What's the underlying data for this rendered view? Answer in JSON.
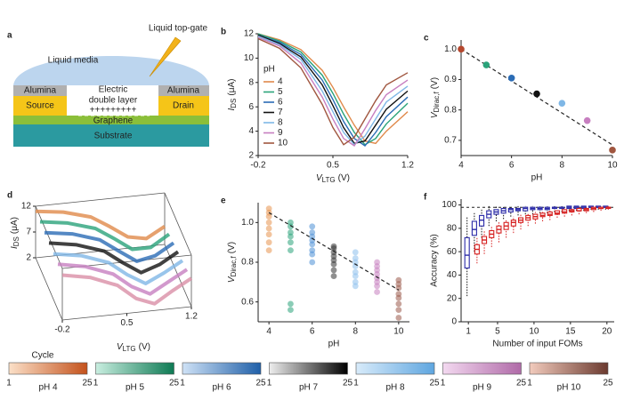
{
  "diagram": {
    "panel": "a",
    "top_gate": "Liquid top-gate",
    "media": "Liquid media",
    "alumina_left": "Alumina",
    "alumina_right": "Alumina",
    "edl": [
      "Electric",
      "double layer"
    ],
    "charges": "+++++++++",
    "source": "Source",
    "drain": "Drain",
    "graphene": "Graphene",
    "substrate": "Substrate"
  },
  "chart_data": [
    {
      "type": "line",
      "panel": "b",
      "x": [
        -0.2,
        0,
        0.2,
        0.4,
        0.5,
        0.6,
        0.7,
        0.8,
        0.9,
        1.0,
        1.2
      ],
      "legend_title": "pH",
      "series": [
        {
          "name": "4",
          "color": "#e0894a",
          "values": [
            12.0,
            11.5,
            10.7,
            9.0,
            7.6,
            6.0,
            4.5,
            3.2,
            3.0,
            4.0,
            5.6
          ]
        },
        {
          "name": "5",
          "color": "#2aa37a",
          "values": [
            12.0,
            11.4,
            10.5,
            8.6,
            7.1,
            5.4,
            3.9,
            2.9,
            3.4,
            4.6,
            6.3
          ]
        },
        {
          "name": "6",
          "color": "#2b6cb5",
          "values": [
            11.9,
            11.3,
            10.3,
            8.2,
            6.6,
            4.8,
            3.4,
            2.8,
            3.9,
            5.2,
            6.8
          ]
        },
        {
          "name": "7",
          "color": "#111111",
          "values": [
            11.9,
            11.2,
            10.1,
            7.8,
            6.1,
            4.3,
            3.0,
            3.2,
            4.5,
            5.8,
            7.3
          ]
        },
        {
          "name": "8",
          "color": "#7fb7e6",
          "values": [
            11.8,
            11.1,
            9.9,
            7.3,
            5.6,
            3.9,
            2.9,
            3.6,
            5.0,
            6.4,
            7.7
          ]
        },
        {
          "name": "9",
          "color": "#c77fc0",
          "values": [
            11.7,
            11.0,
            9.6,
            6.8,
            5.0,
            3.4,
            2.8,
            4.2,
            5.7,
            7.0,
            8.2
          ]
        },
        {
          "name": "10",
          "color": "#a0563f",
          "values": [
            11.6,
            10.8,
            9.2,
            6.2,
            4.3,
            2.9,
            3.5,
            5.0,
            6.5,
            7.8,
            8.8
          ]
        }
      ],
      "xlim": [
        -0.2,
        1.2
      ],
      "ylim": [
        2,
        12
      ],
      "xticks": [
        -0.2,
        0.5,
        1.2
      ],
      "yticks": [
        2,
        4,
        6,
        8,
        10,
        12
      ],
      "x_label": {
        "main": "V",
        "sub": "LTG",
        "unit": "(V)"
      },
      "y_label": {
        "main": "I",
        "sub": "DS",
        "unit": "(μA)"
      }
    },
    {
      "type": "scatter",
      "panel": "c",
      "x": [
        4,
        5,
        6,
        7,
        8,
        9,
        10
      ],
      "values": [
        1.0,
        0.948,
        0.905,
        0.853,
        0.822,
        0.765,
        0.668
      ],
      "colors": [
        "#b5472e",
        "#2aa37a",
        "#2b6cb5",
        "#111111",
        "#7fb7e6",
        "#c77fc0",
        "#a0563f"
      ],
      "fit": {
        "x": [
          4,
          10
        ],
        "values": [
          1.0,
          0.685
        ]
      },
      "xlim": [
        4,
        10
      ],
      "ylim": [
        0.65,
        1.03
      ],
      "xticks": [
        4,
        6,
        8,
        10
      ],
      "yticks": [
        0.7,
        0.8,
        0.9,
        {
          "value": 1,
          "label": "1.0"
        }
      ],
      "x_label": "pH",
      "y_label": {
        "main": "V",
        "sub": "Dirac,f",
        "unit": "(V)"
      }
    },
    {
      "type": "line3d",
      "panel": "d",
      "x": [
        -0.2,
        0.1,
        0.4,
        0.6,
        0.8,
        1.0,
        1.2
      ],
      "series": [
        {
          "color": "#e0894a",
          "values": [
            11,
            10.3,
            8.8,
            6.6,
            4.2,
            3.5,
            5.5
          ]
        },
        {
          "color": "#2aa37a",
          "values": [
            11,
            10.2,
            8.6,
            6.3,
            3.8,
            3.8,
            6
          ]
        },
        {
          "color": "#2b6cb5",
          "values": [
            10.9,
            10.1,
            8.4,
            5.9,
            3.5,
            4.2,
            6.3
          ]
        },
        {
          "color": "#111111",
          "values": [
            10.9,
            10,
            8.2,
            5.6,
            3.3,
            4.5,
            6.6
          ]
        },
        {
          "color": "#7fb7e6",
          "values": [
            10.8,
            9.9,
            8,
            5.3,
            3.2,
            4.9,
            6.9
          ]
        },
        {
          "color": "#c77fc0",
          "values": [
            10.8,
            9.8,
            7.8,
            5,
            3.2,
            5.2,
            7.2
          ]
        },
        {
          "color": "#d98fa6",
          "values": [
            10.7,
            9.7,
            7.6,
            4.7,
            3.3,
            5.5,
            7.5
          ]
        }
      ],
      "xlim": [
        -0.2,
        1.2
      ],
      "zlim": [
        2,
        12
      ],
      "xticks": [
        -0.2,
        0.5,
        1.2
      ],
      "zticks": [
        2,
        7,
        12
      ],
      "x_label": {
        "main": "V",
        "sub": "LTG",
        "unit": "(V)"
      },
      "y_label": {
        "main": "I",
        "sub": "DS",
        "unit": "(μA)"
      }
    },
    {
      "type": "strip",
      "panel": "e",
      "series": [
        {
          "x": 4,
          "color": "#e8944f",
          "values": [
            1.07,
            1.05,
            1.03,
            1.0,
            0.97,
            0.94,
            0.9,
            0.86
          ]
        },
        {
          "x": 5,
          "color": "#2aa37a",
          "values": [
            1.0,
            0.98,
            0.95,
            0.93,
            0.9,
            0.86,
            0.59,
            0.56
          ]
        },
        {
          "x": 6,
          "color": "#4c8fd6",
          "values": [
            0.98,
            0.95,
            0.93,
            0.91,
            0.89,
            0.86,
            0.84,
            0.8
          ]
        },
        {
          "x": 7,
          "color": "#333333",
          "values": [
            0.88,
            0.87,
            0.85,
            0.83,
            0.81,
            0.79,
            0.76,
            0.73
          ]
        },
        {
          "x": 8,
          "color": "#8cc0ec",
          "values": [
            0.85,
            0.82,
            0.8,
            0.78,
            0.75,
            0.73,
            0.7,
            0.68
          ]
        },
        {
          "x": 9,
          "color": "#c77fc0",
          "values": [
            0.8,
            0.78,
            0.76,
            0.74,
            0.72,
            0.7,
            0.68,
            0.65
          ]
        },
        {
          "x": 10,
          "color": "#9a5a4a",
          "values": [
            0.71,
            0.69,
            0.67,
            0.64,
            0.62,
            0.59,
            0.56,
            0.52
          ]
        }
      ],
      "fit": {
        "x": [
          4,
          10
        ],
        "values": [
          1.05,
          0.66
        ]
      },
      "xlim": [
        3.5,
        10.5
      ],
      "ylim": [
        0.5,
        1.1
      ],
      "xticks": [
        4,
        6,
        8,
        10
      ],
      "yticks": [
        0.6,
        0.8,
        {
          "value": 1,
          "label": "1.0"
        }
      ],
      "x_label": "pH",
      "y_label": {
        "main": "V",
        "sub": "Dirac,f",
        "unit": "(V)"
      }
    },
    {
      "type": "box",
      "panel": "f",
      "series": [
        {
          "color": "#2a2aa8",
          "x": [
            1,
            2,
            3,
            4,
            5,
            6,
            7,
            8,
            9,
            10,
            11,
            12,
            13,
            14,
            15,
            16,
            17,
            18,
            19,
            20
          ],
          "min": [
            22,
            60,
            72,
            82,
            86,
            88,
            90,
            91,
            92,
            92,
            93,
            93,
            94,
            94,
            95,
            95,
            95,
            96,
            96,
            96
          ],
          "q1": [
            46,
            74,
            82,
            89,
            92,
            93,
            94,
            95,
            95,
            96,
            96,
            96,
            97,
            97,
            97,
            97,
            97,
            98,
            98,
            98
          ],
          "median": [
            57,
            79,
            87,
            92,
            94,
            95,
            96,
            96,
            97,
            97,
            97,
            97,
            98,
            98,
            98,
            98,
            98,
            98,
            98,
            98
          ],
          "q3": [
            72,
            86,
            91,
            95,
            96,
            97,
            97,
            97,
            98,
            98,
            98,
            98,
            98,
            98,
            99,
            99,
            99,
            99,
            99,
            99
          ],
          "max": [
            90,
            93,
            97,
            99,
            99,
            99,
            99,
            99,
            99,
            99,
            99,
            99,
            99,
            99,
            99,
            99,
            99,
            99,
            99,
            99
          ]
        },
        {
          "color": "#d62020",
          "x": [
            2,
            3,
            4,
            5,
            6,
            7,
            8,
            9,
            10,
            11,
            12,
            13,
            14,
            15,
            16,
            17,
            18,
            19,
            20
          ],
          "min": [
            50,
            58,
            64,
            68,
            72,
            76,
            79,
            82,
            84,
            86,
            87,
            89,
            90,
            91,
            92,
            93,
            94,
            95,
            96
          ],
          "q1": [
            58,
            67,
            72,
            76,
            79,
            82,
            85,
            87,
            88,
            90,
            91,
            92,
            93,
            94,
            95,
            95,
            96,
            97,
            97
          ],
          "median": [
            62,
            70,
            75,
            79,
            82,
            85,
            87,
            89,
            90,
            91,
            92,
            93,
            94,
            95,
            95,
            96,
            97,
            97,
            98
          ],
          "q3": [
            66,
            73,
            78,
            82,
            85,
            87,
            89,
            91,
            92,
            93,
            94,
            95,
            96,
            96,
            97,
            97,
            98,
            98,
            98
          ],
          "max": [
            72,
            78,
            82,
            86,
            88,
            90,
            92,
            93,
            94,
            95,
            96,
            96,
            97,
            97,
            98,
            98,
            98,
            99,
            99
          ]
        }
      ],
      "reference_line": 98,
      "xlim": [
        0,
        21
      ],
      "ylim": [
        0,
        105
      ],
      "xticks": [
        1,
        5,
        10,
        15,
        20
      ],
      "yticks": [
        0,
        20,
        40,
        60,
        80,
        100
      ],
      "x_label": "Number of input FOMs",
      "y_label": "Accuracy (%)"
    },
    {
      "type": "colorbar",
      "title": "Cycle",
      "min": 1,
      "max": 25,
      "items": [
        {
          "label": "pH 4",
          "colors": [
            "#fbe0c8",
            "#c4521c"
          ]
        },
        {
          "label": "pH 5",
          "colors": [
            "#c9eee0",
            "#0e7a54"
          ]
        },
        {
          "label": "pH 6",
          "colors": [
            "#cfe2f6",
            "#1f5fa8"
          ]
        },
        {
          "label": "pH 7",
          "colors": [
            "#eeeeee",
            "#000000"
          ]
        },
        {
          "label": "pH 8",
          "colors": [
            "#d8ebfa",
            "#5fa6e0"
          ]
        },
        {
          "label": "pH 9",
          "colors": [
            "#f3d9f0",
            "#b06aa8"
          ]
        },
        {
          "label": "pH 10",
          "colors": [
            "#f2cbbd",
            "#6b3a2f"
          ]
        }
      ]
    }
  ]
}
